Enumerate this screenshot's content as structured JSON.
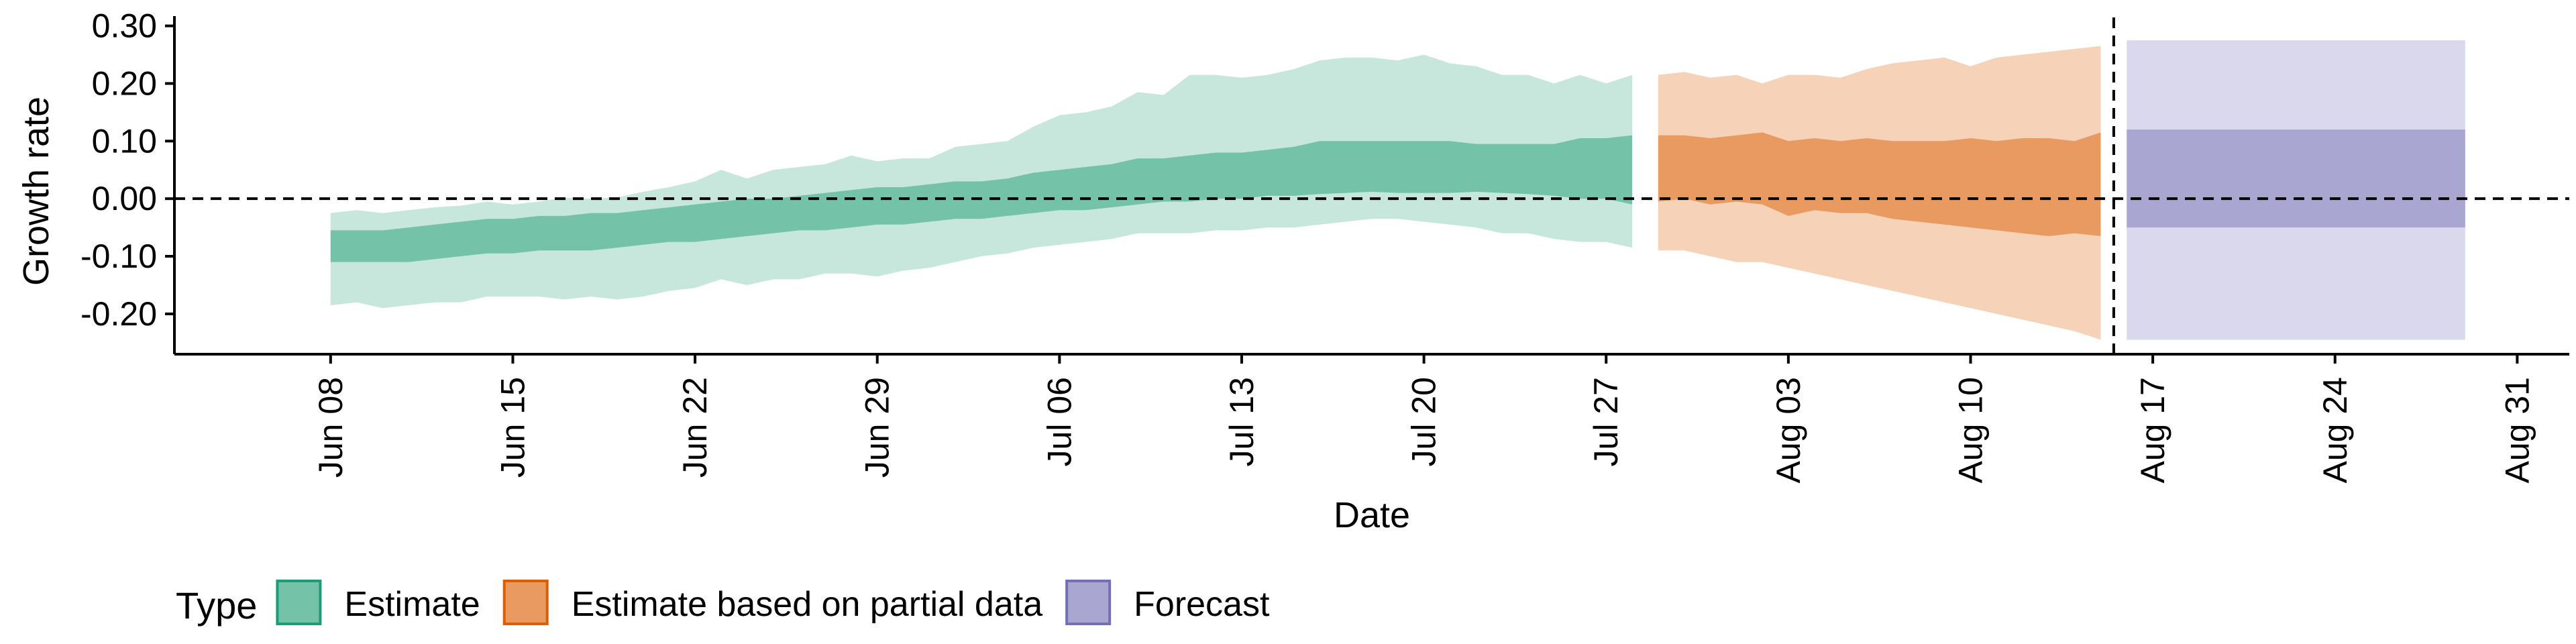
{
  "chart_data": {
    "type": "area",
    "title": "",
    "xlabel": "Date",
    "ylabel": "Growth rate",
    "ylim": [
      -0.27,
      0.31
    ],
    "xlim": [
      "2020-06-02",
      "2020-09-02"
    ],
    "y_ticks": [
      "-0.20",
      "-0.10",
      "0.00",
      "0.10",
      "0.20",
      "0.30"
    ],
    "y_tick_values": [
      -0.2,
      -0.1,
      0.0,
      0.1,
      0.2,
      0.3
    ],
    "x_ticks": [
      "Jun 08",
      "Jun 15",
      "Jun 22",
      "Jun 29",
      "Jul 06",
      "Jul 13",
      "Jul 20",
      "Jul 27",
      "Aug 03",
      "Aug 10",
      "Aug 17",
      "Aug 24",
      "Aug 31"
    ],
    "x_tick_dates": [
      "2020-06-08",
      "2020-06-15",
      "2020-06-22",
      "2020-06-29",
      "2020-07-06",
      "2020-07-13",
      "2020-07-20",
      "2020-07-27",
      "2020-08-03",
      "2020-08-10",
      "2020-08-17",
      "2020-08-24",
      "2020-08-31"
    ],
    "reference_lines": {
      "horizontal_y": 0.0,
      "vertical_x": "2020-08-15"
    },
    "grid": false,
    "legend": {
      "position": "bottom-left",
      "title": "Type",
      "entries": [
        {
          "label": "Estimate",
          "fill": "#74c3a9",
          "border": "#1b9e77"
        },
        {
          "label": "Estimate based on partial data",
          "fill": "#e89a60",
          "border": "#d95f02"
        },
        {
          "label": "Forecast",
          "fill": "#a9a6d1",
          "border": "#7570b3"
        }
      ]
    },
    "series": [
      {
        "name": "Estimate",
        "outer_color": "#c7e7dc",
        "inner_color": "#74c3a9",
        "x": [
          "2020-06-08",
          "2020-06-09",
          "2020-06-10",
          "2020-06-11",
          "2020-06-12",
          "2020-06-13",
          "2020-06-14",
          "2020-06-15",
          "2020-06-16",
          "2020-06-17",
          "2020-06-18",
          "2020-06-19",
          "2020-06-20",
          "2020-06-21",
          "2020-06-22",
          "2020-06-23",
          "2020-06-24",
          "2020-06-25",
          "2020-06-26",
          "2020-06-27",
          "2020-06-28",
          "2020-06-29",
          "2020-06-30",
          "2020-07-01",
          "2020-07-02",
          "2020-07-03",
          "2020-07-04",
          "2020-07-05",
          "2020-07-06",
          "2020-07-07",
          "2020-07-08",
          "2020-07-09",
          "2020-07-10",
          "2020-07-11",
          "2020-07-12",
          "2020-07-13",
          "2020-07-14",
          "2020-07-15",
          "2020-07-16",
          "2020-07-17",
          "2020-07-18",
          "2020-07-19",
          "2020-07-20",
          "2020-07-21",
          "2020-07-22",
          "2020-07-23",
          "2020-07-24",
          "2020-07-25",
          "2020-07-26",
          "2020-07-27",
          "2020-07-28"
        ],
        "upper90": [
          -0.025,
          -0.02,
          -0.025,
          -0.02,
          -0.015,
          -0.012,
          -0.005,
          -0.01,
          -0.005,
          0.002,
          0.0,
          0.002,
          0.012,
          0.02,
          0.03,
          0.05,
          0.035,
          0.05,
          0.055,
          0.06,
          0.075,
          0.065,
          0.07,
          0.07,
          0.09,
          0.095,
          0.1,
          0.125,
          0.145,
          0.15,
          0.16,
          0.185,
          0.18,
          0.215,
          0.215,
          0.21,
          0.215,
          0.225,
          0.24,
          0.245,
          0.245,
          0.24,
          0.25,
          0.235,
          0.23,
          0.215,
          0.215,
          0.2,
          0.215,
          0.2,
          0.215
        ],
        "upper50": [
          -0.055,
          -0.055,
          -0.055,
          -0.05,
          -0.045,
          -0.04,
          -0.035,
          -0.035,
          -0.03,
          -0.03,
          -0.025,
          -0.025,
          -0.02,
          -0.015,
          -0.01,
          -0.005,
          0.0,
          0.0,
          0.005,
          0.01,
          0.015,
          0.02,
          0.02,
          0.025,
          0.03,
          0.03,
          0.035,
          0.045,
          0.05,
          0.055,
          0.06,
          0.07,
          0.07,
          0.075,
          0.08,
          0.08,
          0.085,
          0.09,
          0.1,
          0.1,
          0.1,
          0.1,
          0.1,
          0.1,
          0.095,
          0.095,
          0.095,
          0.095,
          0.105,
          0.105,
          0.11
        ],
        "lower50": [
          -0.11,
          -0.11,
          -0.11,
          -0.11,
          -0.105,
          -0.1,
          -0.095,
          -0.095,
          -0.09,
          -0.09,
          -0.09,
          -0.085,
          -0.08,
          -0.075,
          -0.075,
          -0.07,
          -0.065,
          -0.06,
          -0.055,
          -0.055,
          -0.05,
          -0.045,
          -0.045,
          -0.04,
          -0.035,
          -0.035,
          -0.03,
          -0.025,
          -0.02,
          -0.02,
          -0.015,
          -0.01,
          -0.005,
          -0.005,
          0.0,
          0.0,
          0.005,
          0.005,
          0.008,
          0.01,
          0.012,
          0.01,
          0.01,
          0.01,
          0.012,
          0.01,
          0.008,
          0.005,
          0.0,
          0.0,
          -0.01
        ],
        "lower90": [
          -0.185,
          -0.18,
          -0.19,
          -0.185,
          -0.18,
          -0.18,
          -0.17,
          -0.17,
          -0.17,
          -0.175,
          -0.17,
          -0.175,
          -0.17,
          -0.16,
          -0.155,
          -0.14,
          -0.15,
          -0.14,
          -0.14,
          -0.13,
          -0.13,
          -0.135,
          -0.125,
          -0.12,
          -0.11,
          -0.1,
          -0.095,
          -0.085,
          -0.08,
          -0.075,
          -0.07,
          -0.06,
          -0.06,
          -0.06,
          -0.055,
          -0.055,
          -0.05,
          -0.05,
          -0.045,
          -0.04,
          -0.035,
          -0.035,
          -0.04,
          -0.045,
          -0.05,
          -0.06,
          -0.06,
          -0.07,
          -0.075,
          -0.075,
          -0.085
        ]
      },
      {
        "name": "Estimate based on partial data",
        "outer_color": "#f5d2b8",
        "inner_color": "#e89a60",
        "x": [
          "2020-07-29",
          "2020-07-30",
          "2020-07-31",
          "2020-08-01",
          "2020-08-02",
          "2020-08-03",
          "2020-08-04",
          "2020-08-05",
          "2020-08-06",
          "2020-08-07",
          "2020-08-08",
          "2020-08-09",
          "2020-08-10",
          "2020-08-11",
          "2020-08-12",
          "2020-08-13",
          "2020-08-14",
          "2020-08-15"
        ],
        "upper90": [
          0.215,
          0.22,
          0.21,
          0.215,
          0.2,
          0.215,
          0.215,
          0.21,
          0.225,
          0.235,
          0.24,
          0.245,
          0.23,
          0.245,
          0.25,
          0.255,
          0.26,
          0.265
        ],
        "upper50": [
          0.11,
          0.11,
          0.105,
          0.11,
          0.115,
          0.1,
          0.105,
          0.1,
          0.105,
          0.1,
          0.1,
          0.1,
          0.105,
          0.1,
          0.105,
          0.105,
          0.1,
          0.115
        ],
        "lower50": [
          -0.005,
          0.0,
          -0.01,
          -0.005,
          -0.01,
          -0.03,
          -0.02,
          -0.025,
          -0.025,
          -0.035,
          -0.04,
          -0.045,
          -0.05,
          -0.055,
          -0.06,
          -0.065,
          -0.06,
          -0.065
        ],
        "lower90": [
          -0.09,
          -0.09,
          -0.1,
          -0.11,
          -0.11,
          -0.12,
          -0.13,
          -0.14,
          -0.15,
          -0.16,
          -0.17,
          -0.18,
          -0.19,
          -0.2,
          -0.21,
          -0.22,
          -0.23,
          -0.245
        ]
      },
      {
        "name": "Forecast",
        "outer_color": "#d9d8ec",
        "inner_color": "#a9a6d1",
        "x": [
          "2020-08-16",
          "2020-08-29"
        ],
        "upper90": [
          0.275,
          0.275
        ],
        "upper50": [
          0.12,
          0.12
        ],
        "lower50": [
          -0.05,
          -0.05
        ],
        "lower90": [
          -0.245,
          -0.245
        ]
      }
    ]
  }
}
